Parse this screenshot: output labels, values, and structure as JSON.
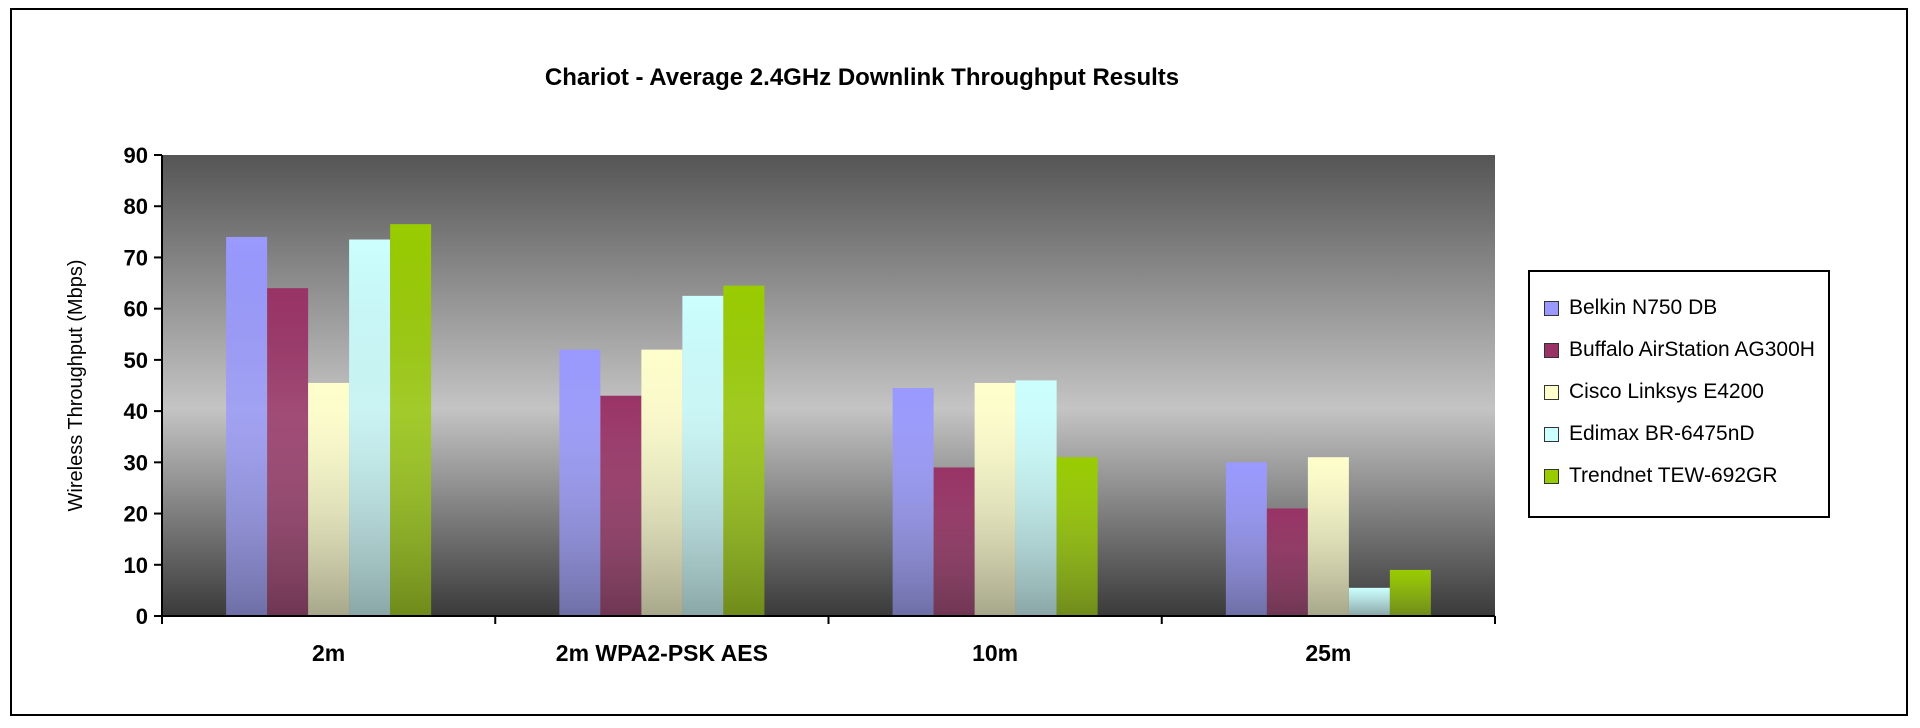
{
  "chart_data": {
    "type": "bar",
    "title": "Chariot - Average 2.4GHz Downlink Throughput Results",
    "xlabel": "",
    "ylabel": "Wireless Throughput (Mbps)",
    "ylim": [
      0,
      90
    ],
    "yticks": [
      0,
      10,
      20,
      30,
      40,
      50,
      60,
      70,
      80,
      90
    ],
    "grid": false,
    "legend_position": "right",
    "categories": [
      "2m",
      "2m WPA2-PSK AES",
      "10m",
      "25m"
    ],
    "series": [
      {
        "name": "Belkin N750 DB",
        "color": "#9999ff",
        "values": [
          74,
          52,
          44.5,
          30
        ]
      },
      {
        "name": "Buffalo AirStation AG300H",
        "color": "#993366",
        "values": [
          64,
          43,
          29,
          21
        ]
      },
      {
        "name": "Cisco Linksys E4200",
        "color": "#ffffcc",
        "values": [
          45.5,
          52,
          45.5,
          31
        ]
      },
      {
        "name": "Edimax BR-6475nD",
        "color": "#ccffff",
        "values": [
          73.5,
          62.5,
          46,
          5.5
        ]
      },
      {
        "name": "Trendnet TEW-692GR",
        "color": "#99cc00",
        "values": [
          76.5,
          64.5,
          31,
          9
        ]
      }
    ]
  }
}
